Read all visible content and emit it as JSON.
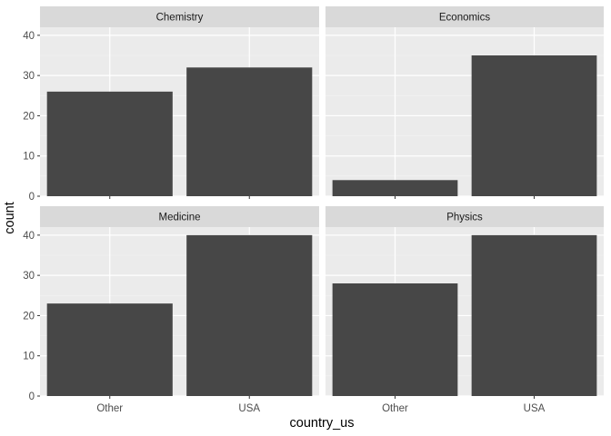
{
  "chart_data": {
    "type": "bar",
    "facet_layout": "2x2 wrap, shared axes",
    "xlabel": "country_us",
    "ylabel": "count",
    "categories": [
      "Other",
      "USA"
    ],
    "ylim": [
      0,
      42
    ],
    "yticks": [
      0,
      10,
      20,
      30,
      40
    ],
    "grid": true,
    "panels": [
      {
        "title": "Chemistry",
        "values": [
          26,
          32
        ]
      },
      {
        "title": "Economics",
        "values": [
          4,
          35
        ]
      },
      {
        "title": "Medicine",
        "values": [
          23,
          40
        ]
      },
      {
        "title": "Physics",
        "values": [
          28,
          40
        ]
      }
    ],
    "colors": {
      "panel_background": "#ebebeb",
      "strip_background": "#d9d9d9",
      "bar_fill": "#474747",
      "grid_major": "#ffffff",
      "grid_minor": "#f4f4f4"
    }
  }
}
